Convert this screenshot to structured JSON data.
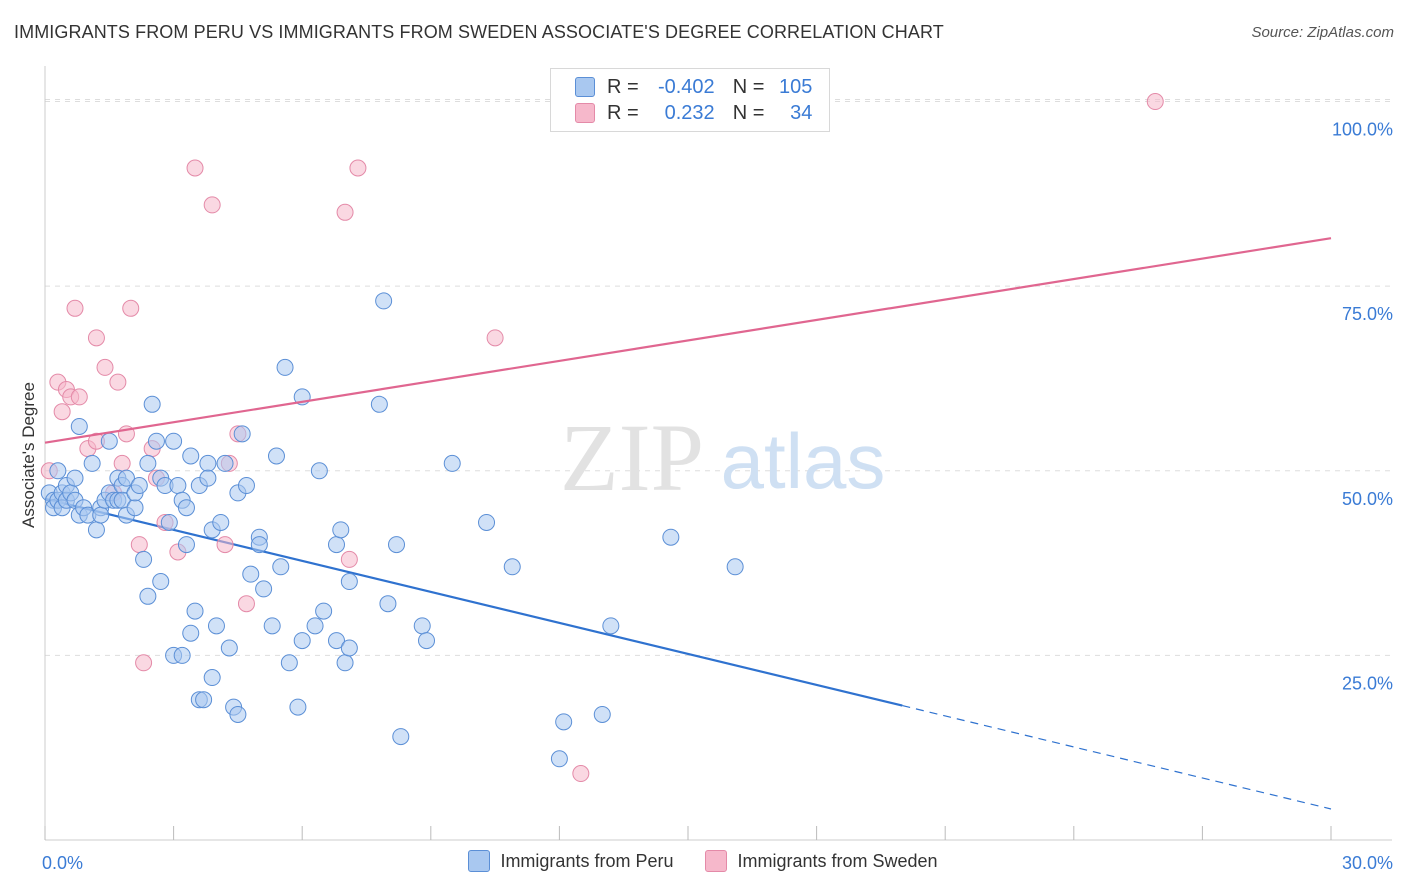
{
  "header": {
    "title": "IMMIGRANTS FROM PERU VS IMMIGRANTS FROM SWEDEN ASSOCIATE'S DEGREE CORRELATION CHART",
    "source": "Source: ZipAtlas.com"
  },
  "legend": {
    "rows": [
      {
        "r_label": "R =",
        "r_value": "-0.402",
        "n_label": "N =",
        "n_value": "105"
      },
      {
        "r_label": "R =",
        "r_value": "0.232",
        "n_label": "N =",
        "n_value": "34"
      }
    ]
  },
  "watermark": {
    "zip": "ZIP",
    "atlas": "atlas"
  },
  "colors": {
    "peru_fill": "#a9c8f0",
    "peru_stroke": "#5b8fd6",
    "peru_line": "#2f72cf",
    "sweden_fill": "#f6b8cb",
    "sweden_stroke": "#e48aa8",
    "sweden_line": "#e06690",
    "axis_text": "#3a7bd5",
    "grid": "#dddddd"
  },
  "chart_data": {
    "type": "scatter",
    "title": "IMMIGRANTS FROM PERU VS IMMIGRANTS FROM SWEDEN ASSOCIATE'S DEGREE CORRELATION CHART",
    "xlabel": "",
    "ylabel": "Associate's Degree",
    "xlim": [
      0,
      30
    ],
    "ylim": [
      0,
      104
    ],
    "x_ticks": [
      "0.0%",
      "30.0%"
    ],
    "y_ticks": [
      {
        "value": 25,
        "label": "25.0%"
      },
      {
        "value": 50,
        "label": "50.0%"
      },
      {
        "value": 75,
        "label": "75.0%"
      },
      {
        "value": 100,
        "label": "100.0%"
      }
    ],
    "grid": true,
    "legend_position": "bottom",
    "series": [
      {
        "name": "Immigrants from Peru",
        "trend": {
          "x0": 0,
          "y0": 46.2,
          "x1": 20.0,
          "y1": 18.2,
          "dash_x1": 30.0,
          "dash_y1": 4.2
        },
        "points": [
          [
            0.1,
            47
          ],
          [
            0.2,
            46
          ],
          [
            0.2,
            45
          ],
          [
            0.3,
            50
          ],
          [
            0.3,
            46
          ],
          [
            0.4,
            47
          ],
          [
            0.4,
            45
          ],
          [
            0.5,
            48
          ],
          [
            0.5,
            46
          ],
          [
            0.6,
            47
          ],
          [
            0.7,
            46
          ],
          [
            0.7,
            49
          ],
          [
            0.8,
            44
          ],
          [
            0.8,
            56
          ],
          [
            0.9,
            45
          ],
          [
            1.0,
            44
          ],
          [
            1.1,
            51
          ],
          [
            1.2,
            42
          ],
          [
            1.3,
            45
          ],
          [
            1.3,
            44
          ],
          [
            1.4,
            46
          ],
          [
            1.5,
            47
          ],
          [
            1.5,
            54
          ],
          [
            1.6,
            46
          ],
          [
            1.7,
            49
          ],
          [
            1.7,
            46
          ],
          [
            1.8,
            48
          ],
          [
            1.8,
            46
          ],
          [
            1.9,
            44
          ],
          [
            1.9,
            49
          ],
          [
            2.1,
            45
          ],
          [
            2.1,
            47
          ],
          [
            2.2,
            48
          ],
          [
            2.3,
            38
          ],
          [
            2.4,
            51
          ],
          [
            2.4,
            33
          ],
          [
            2.5,
            59
          ],
          [
            2.6,
            54
          ],
          [
            2.7,
            49
          ],
          [
            2.7,
            35
          ],
          [
            2.8,
            48
          ],
          [
            2.9,
            43
          ],
          [
            3.0,
            54
          ],
          [
            3.0,
            25
          ],
          [
            3.1,
            48
          ],
          [
            3.2,
            46
          ],
          [
            3.2,
            25
          ],
          [
            3.3,
            40
          ],
          [
            3.3,
            45
          ],
          [
            3.4,
            52
          ],
          [
            3.4,
            28
          ],
          [
            3.5,
            31
          ],
          [
            3.6,
            48
          ],
          [
            3.6,
            19
          ],
          [
            3.7,
            19
          ],
          [
            3.8,
            51
          ],
          [
            3.8,
            49
          ],
          [
            3.9,
            42
          ],
          [
            3.9,
            22
          ],
          [
            4.0,
            29
          ],
          [
            4.1,
            43
          ],
          [
            4.2,
            51
          ],
          [
            4.3,
            26
          ],
          [
            4.4,
            18
          ],
          [
            4.5,
            17
          ],
          [
            4.5,
            47
          ],
          [
            4.6,
            55
          ],
          [
            4.7,
            48
          ],
          [
            4.8,
            36
          ],
          [
            5.0,
            41
          ],
          [
            5.0,
            40
          ],
          [
            5.1,
            34
          ],
          [
            5.3,
            29
          ],
          [
            5.4,
            52
          ],
          [
            5.5,
            37
          ],
          [
            5.6,
            64
          ],
          [
            5.7,
            24
          ],
          [
            5.9,
            18
          ],
          [
            6.0,
            60
          ],
          [
            6.0,
            27
          ],
          [
            6.3,
            29
          ],
          [
            6.4,
            50
          ],
          [
            6.5,
            31
          ],
          [
            6.8,
            40
          ],
          [
            6.8,
            27
          ],
          [
            6.9,
            42
          ],
          [
            7.0,
            24
          ],
          [
            7.1,
            26
          ],
          [
            7.1,
            35
          ],
          [
            7.8,
            59
          ],
          [
            7.9,
            73
          ],
          [
            8.0,
            32
          ],
          [
            8.2,
            40
          ],
          [
            8.3,
            14
          ],
          [
            8.8,
            29
          ],
          [
            8.9,
            27
          ],
          [
            9.5,
            51
          ],
          [
            10.3,
            43
          ],
          [
            10.9,
            37
          ],
          [
            12.0,
            11
          ],
          [
            12.1,
            16
          ],
          [
            13.0,
            17
          ],
          [
            13.2,
            29
          ],
          [
            14.6,
            41
          ],
          [
            16.1,
            37
          ]
        ]
      },
      {
        "name": "Immigrants from Sweden",
        "trend": {
          "x0": 0,
          "y0": 53.8,
          "x1": 30.0,
          "y1": 81.5
        },
        "points": [
          [
            0.1,
            50
          ],
          [
            0.3,
            62
          ],
          [
            0.4,
            58
          ],
          [
            0.5,
            61
          ],
          [
            0.6,
            60
          ],
          [
            0.7,
            72
          ],
          [
            0.8,
            60
          ],
          [
            1.0,
            53
          ],
          [
            1.2,
            54
          ],
          [
            1.2,
            68
          ],
          [
            1.4,
            64
          ],
          [
            1.6,
            47
          ],
          [
            1.7,
            62
          ],
          [
            1.8,
            51
          ],
          [
            1.9,
            55
          ],
          [
            2.0,
            72
          ],
          [
            2.2,
            40
          ],
          [
            2.3,
            24
          ],
          [
            2.5,
            53
          ],
          [
            2.6,
            49
          ],
          [
            2.8,
            43
          ],
          [
            3.1,
            39
          ],
          [
            3.5,
            91
          ],
          [
            3.9,
            86
          ],
          [
            4.2,
            40
          ],
          [
            4.3,
            51
          ],
          [
            4.5,
            55
          ],
          [
            4.7,
            32
          ],
          [
            7.0,
            85
          ],
          [
            7.1,
            38
          ],
          [
            7.3,
            91
          ],
          [
            10.5,
            68
          ],
          [
            12.5,
            9
          ],
          [
            25.9,
            100
          ]
        ]
      }
    ]
  }
}
